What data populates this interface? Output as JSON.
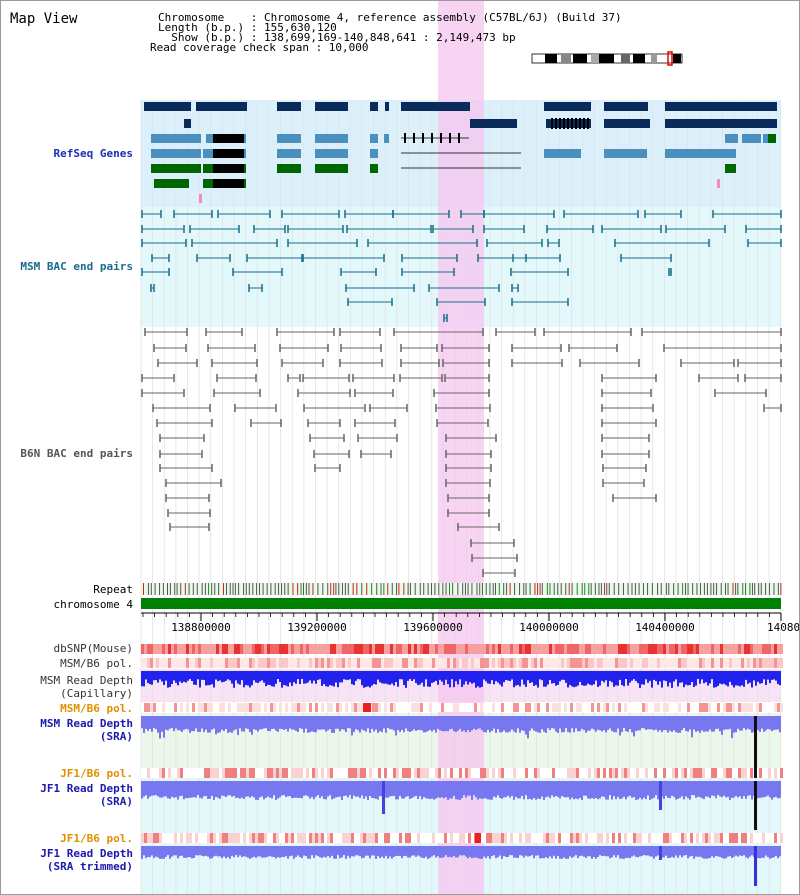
{
  "page": {
    "title": "Map View"
  },
  "header": {
    "chromosome_line": "Chromosome    : Chromosome 4, reference assembly (C57BL/6J) (Build 37)",
    "length_line": "Length (b.p.) : 155,630,120",
    "show_line": "  Show (b.p.) : 138,699,169-140,848,641 : 2,149,473 bp",
    "read_line": "Read coverage check span : 10,000"
  },
  "tracks": {
    "refseq": "RefSeq Genes",
    "msm_bac": "MSM BAC end pairs",
    "b6n_bac": "B6N BAC end pairs",
    "repeat": "Repeat",
    "chromosome": "chromosome 4",
    "dbsnp": "dbSNP(Mouse)",
    "msm_b6_pol": "MSM/B6 pol.",
    "msm_read_cap_1": "MSM Read Depth",
    "msm_read_cap_2": "(Capillary)",
    "msm_b6_pol_2": "MSM/B6 pol.",
    "msm_read_sra_1": "MSM Read Depth",
    "msm_read_sra_2": "(SRA)",
    "jf1_b6_pol": "JF1/B6 pol.",
    "jf1_read_sra_1": "JF1 Read Depth",
    "jf1_read_sra_2": "(SRA)",
    "jf1_b6_pol_2": "JF1/B6 pol.",
    "jf1_read_trim_1": "JF1 Read Depth",
    "jf1_read_trim_2": "(SRA trimmed)"
  },
  "axis": {
    "ticks": [
      "138800000",
      "139200000",
      "139600000",
      "140000000",
      "140400000",
      "14080"
    ]
  },
  "colors": {
    "gene_dark": "#0b2a5c",
    "gene_mid": "#4b8fbf",
    "gene_green": "#006600",
    "msm_bac": "#1a6d8a",
    "b6n_bac": "#666666",
    "highlight": "#f5c6ef",
    "msm_depth": "#2222ee",
    "sra_depth": "#7777f0"
  }
}
